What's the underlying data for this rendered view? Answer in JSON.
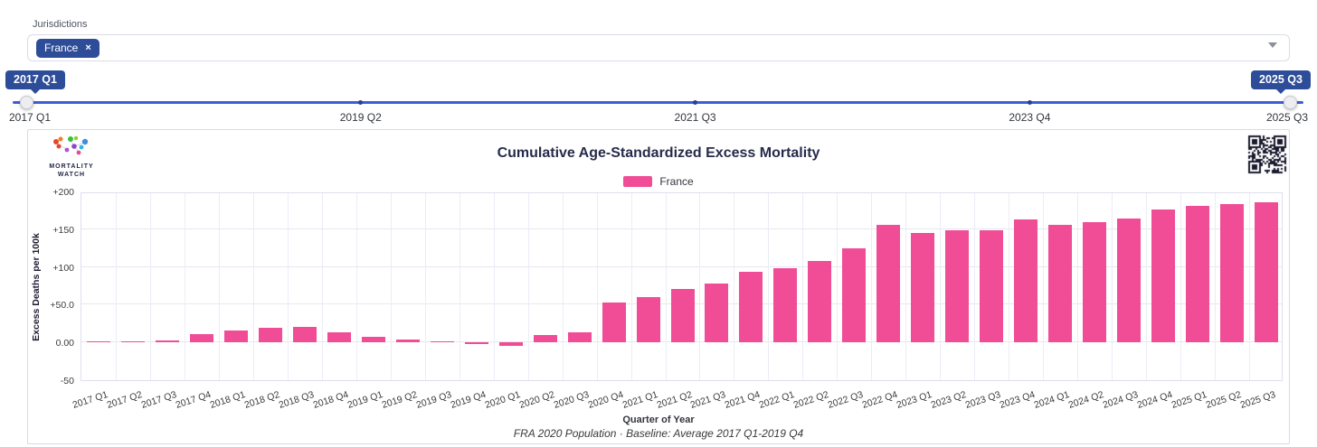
{
  "jurisdictions": {
    "label": "Jurisdictions",
    "selected_tag": "France",
    "remove_icon": "×"
  },
  "range_slider": {
    "start_tooltip": "2017 Q1",
    "end_tooltip": "2025 Q3",
    "axis_labels": [
      "2017 Q1",
      "2019 Q2",
      "2021 Q3",
      "2023 Q4",
      "2025 Q3"
    ],
    "tick_labels": [
      "2019 Q2",
      "2021 Q3",
      "2023 Q4"
    ]
  },
  "brand": {
    "name_line1": "MORTALITY",
    "name_line2": "WATCH"
  },
  "colors": {
    "bar_pink": "#f04d96",
    "accent_blue": "#3a5fd7",
    "badge_navy": "#2e4d99"
  },
  "chart_data": {
    "type": "bar",
    "title": "Cumulative Age-Standardized Excess Mortality",
    "legend": [
      {
        "label": "France",
        "color": "#f04d96"
      }
    ],
    "legend_position": "top",
    "grid": true,
    "xlabel": "Quarter of Year",
    "ylabel": "Excess Deaths per 100k",
    "caption": "FRA 2020 Population · Baseline: Average 2017 Q1-2019 Q4",
    "ylim": [
      -50,
      200
    ],
    "yticks": [
      -50,
      0,
      50,
      100,
      150,
      200
    ],
    "ytick_labels": [
      "-50",
      "0.00",
      "+50.0",
      "+100",
      "+150",
      "+200"
    ],
    "categories": [
      "2017 Q1",
      "2017 Q2",
      "2017 Q3",
      "2017 Q4",
      "2018 Q1",
      "2018 Q2",
      "2018 Q3",
      "2018 Q4",
      "2019 Q1",
      "2019 Q2",
      "2019 Q3",
      "2019 Q4",
      "2020 Q1",
      "2020 Q2",
      "2020 Q3",
      "2020 Q4",
      "2021 Q1",
      "2021 Q2",
      "2021 Q3",
      "2021 Q4",
      "2022 Q1",
      "2022 Q2",
      "2022 Q3",
      "2022 Q4",
      "2023 Q1",
      "2023 Q2",
      "2023 Q3",
      "2023 Q4",
      "2024 Q1",
      "2024 Q2",
      "2024 Q3",
      "2024 Q4",
      "2025 Q1",
      "2025 Q2",
      "2025 Q3"
    ],
    "values": [
      2,
      1,
      3,
      11,
      16,
      19,
      20,
      13,
      7,
      4,
      1.5,
      -0.5,
      -4,
      10,
      13,
      53,
      60,
      71,
      78,
      94,
      98,
      108,
      125,
      156,
      145,
      148,
      149,
      163,
      156,
      159,
      164,
      176,
      181,
      183,
      186
    ]
  }
}
